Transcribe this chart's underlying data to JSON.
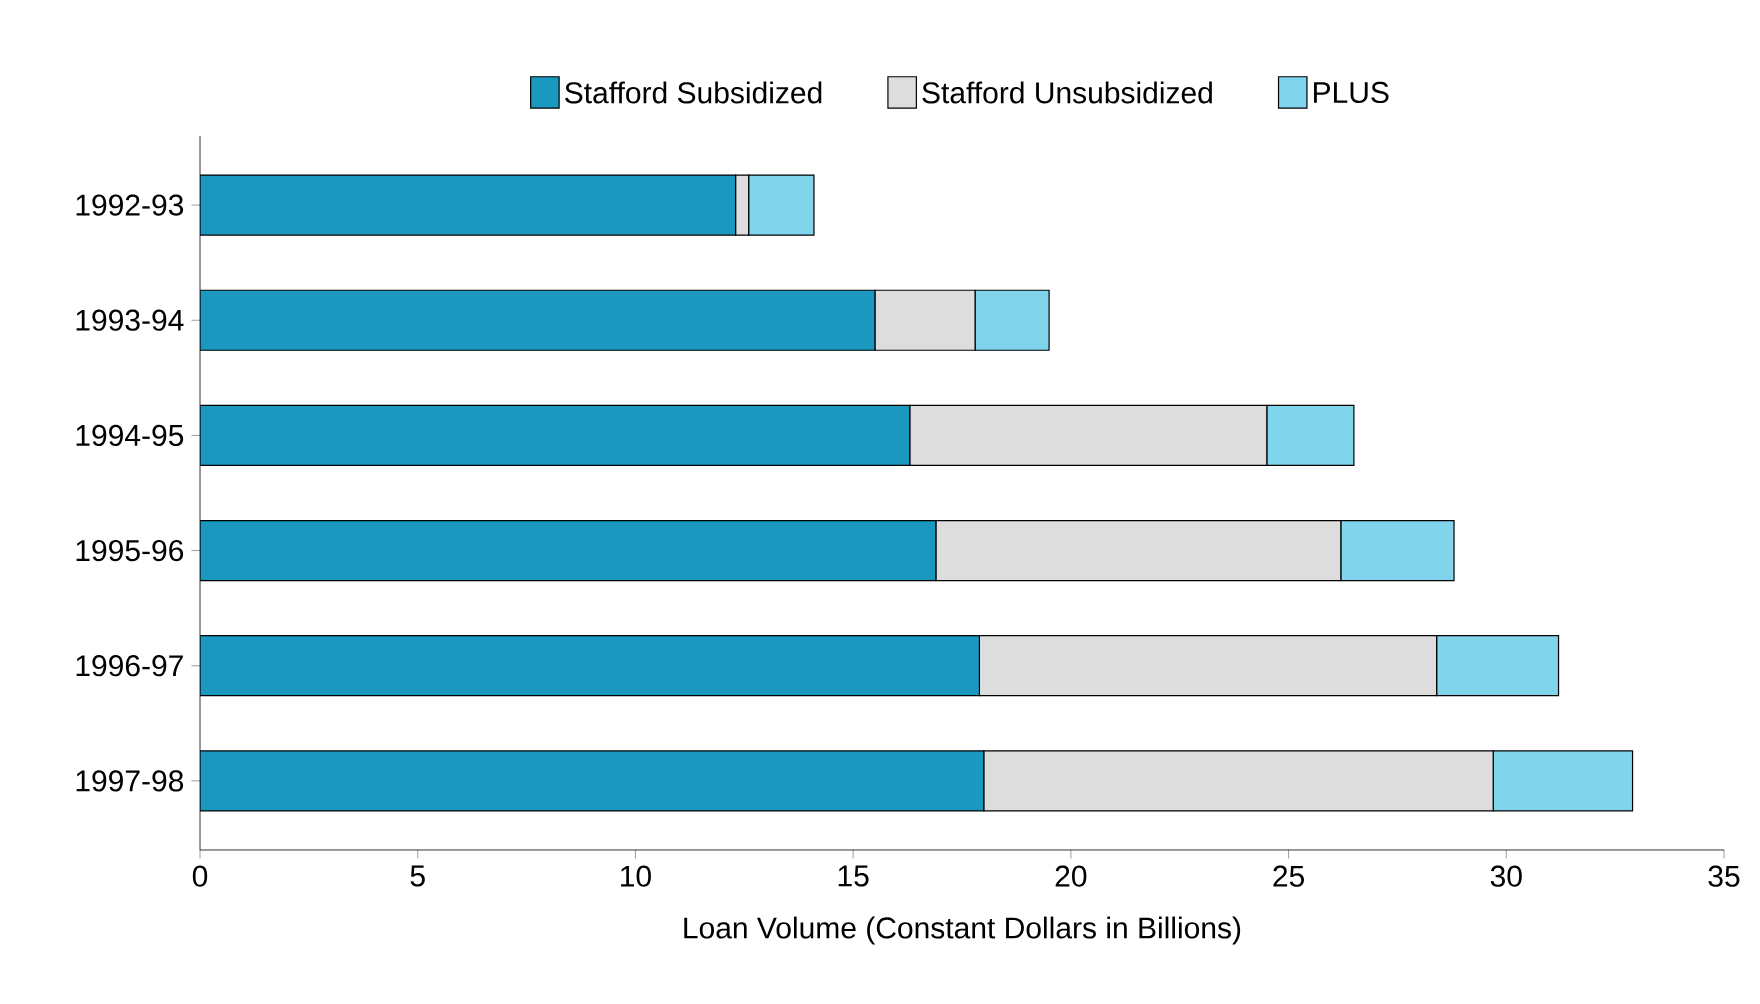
{
  "chart_data": {
    "type": "bar",
    "orientation": "horizontal",
    "stacked": true,
    "xlabel": "Loan Volume (Constant Dollars in Billions)",
    "categories": [
      "1992-93",
      "1993-94",
      "1994-95",
      "1995-96",
      "1996-97",
      "1997-98"
    ],
    "series": [
      {
        "name": "Stafford Subsidized",
        "color": "#1a98c0",
        "values": [
          12.3,
          15.5,
          16.3,
          16.9,
          17.9,
          18.0
        ]
      },
      {
        "name": "Stafford Unsubsidized",
        "color": "#dddddd",
        "values": [
          0.3,
          2.3,
          8.2,
          9.3,
          10.5,
          11.7
        ]
      },
      {
        "name": "PLUS",
        "color": "#80d4ec",
        "values": [
          1.5,
          1.7,
          2.0,
          2.6,
          2.8,
          3.2
        ]
      }
    ],
    "xlim": [
      0,
      35
    ],
    "xticks": [
      0,
      5,
      10,
      15,
      20,
      25,
      30,
      35
    ],
    "grid": false,
    "legend": "top"
  }
}
